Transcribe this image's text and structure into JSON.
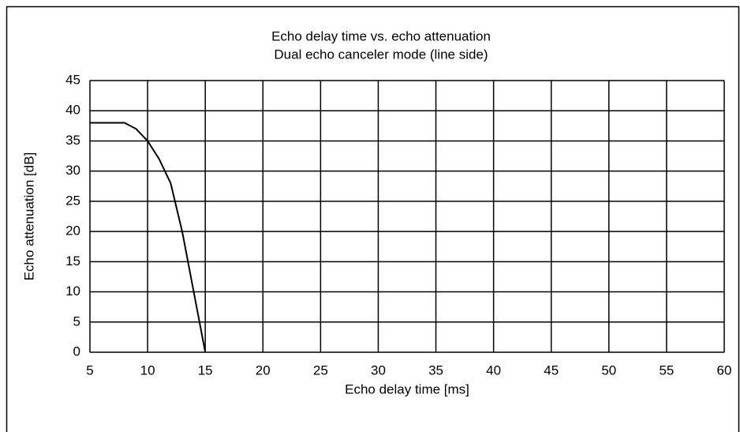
{
  "chart_data": {
    "type": "line",
    "title": "Echo delay time vs. echo attenuation",
    "subtitle": "Dual echo canceler mode (line side)",
    "x_label": "Echo delay time [ms]",
    "y_label": "Echo attenuation [dB]",
    "x": [
      5,
      8,
      9,
      10,
      11,
      12,
      13,
      15
    ],
    "series": [
      {
        "name": null,
        "color": "#000000",
        "values": [
          38,
          38,
          37,
          35,
          32,
          28,
          20,
          0
        ]
      }
    ],
    "xlim": [
      5,
      60
    ],
    "xticks": [
      5,
      10,
      15,
      20,
      25,
      30,
      35,
      40,
      45,
      50,
      55,
      60
    ],
    "ylim": [
      0,
      45
    ],
    "yticks": [
      0,
      5,
      10,
      15,
      20,
      25,
      30,
      35,
      40,
      45
    ],
    "grid": true
  }
}
